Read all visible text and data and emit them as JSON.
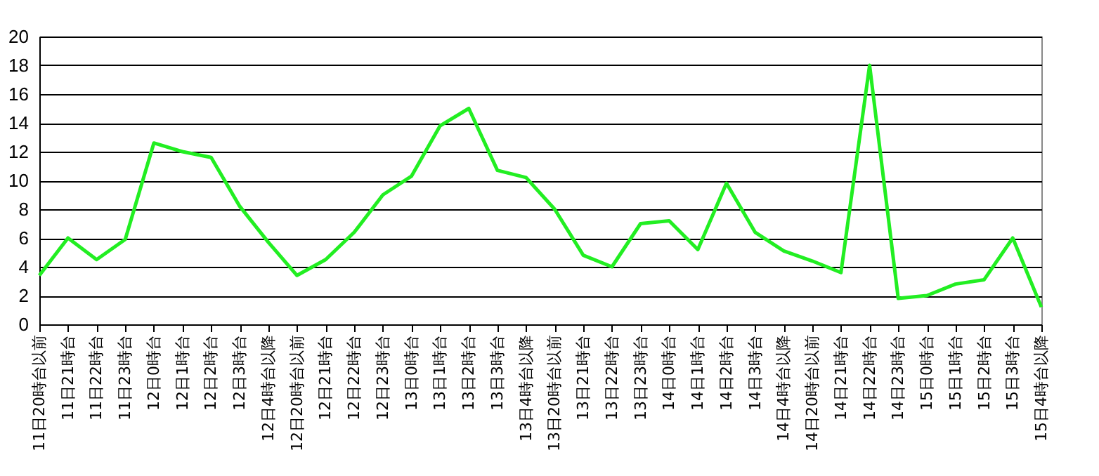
{
  "chart_data": {
    "type": "line",
    "categories": [
      "11日20時台以前",
      "11日21時台",
      "11日22時台",
      "11日23時台",
      "12日0時台",
      "12日1時台",
      "12日2時台",
      "12日3時台",
      "12日4時台以降",
      "12日20時台以前",
      "12日21時台",
      "12日22時台",
      "12日23時台",
      "13日0時台",
      "13日1時台",
      "13日2時台",
      "13日3時台",
      "13日4時台以降",
      "13日20時台以前",
      "13日21時台",
      "13日22時台",
      "13日23時台",
      "14日0時台",
      "14日1時台",
      "14日2時台",
      "14日3時台",
      "14日4時台以降",
      "14日20時台以前",
      "14日21時台",
      "14日22時台",
      "14日23時台",
      "15日0時台",
      "15日1時台",
      "15日2時台",
      "15日3時台",
      "15日4時台以降"
    ],
    "series": [
      {
        "color": "#22ee22",
        "values": [
          3.4,
          6.0,
          4.5,
          5.9,
          12.6,
          12.0,
          11.6,
          8.2,
          5.7,
          3.4,
          4.5,
          6.4,
          9.0,
          10.3,
          13.8,
          15.0,
          10.7,
          10.2,
          8.0,
          4.8,
          4.0,
          7.0,
          7.2,
          5.2,
          9.8,
          6.4,
          5.1,
          4.4,
          3.6,
          18.0,
          1.8,
          2.0,
          2.8,
          3.1,
          6.0,
          1.2
        ]
      }
    ],
    "ylim": [
      0,
      20
    ],
    "yticks": [
      0,
      2,
      4,
      6,
      8,
      10,
      12,
      14,
      16,
      18,
      20
    ],
    "grid": "y",
    "marker": "none",
    "line_style": "solid"
  }
}
